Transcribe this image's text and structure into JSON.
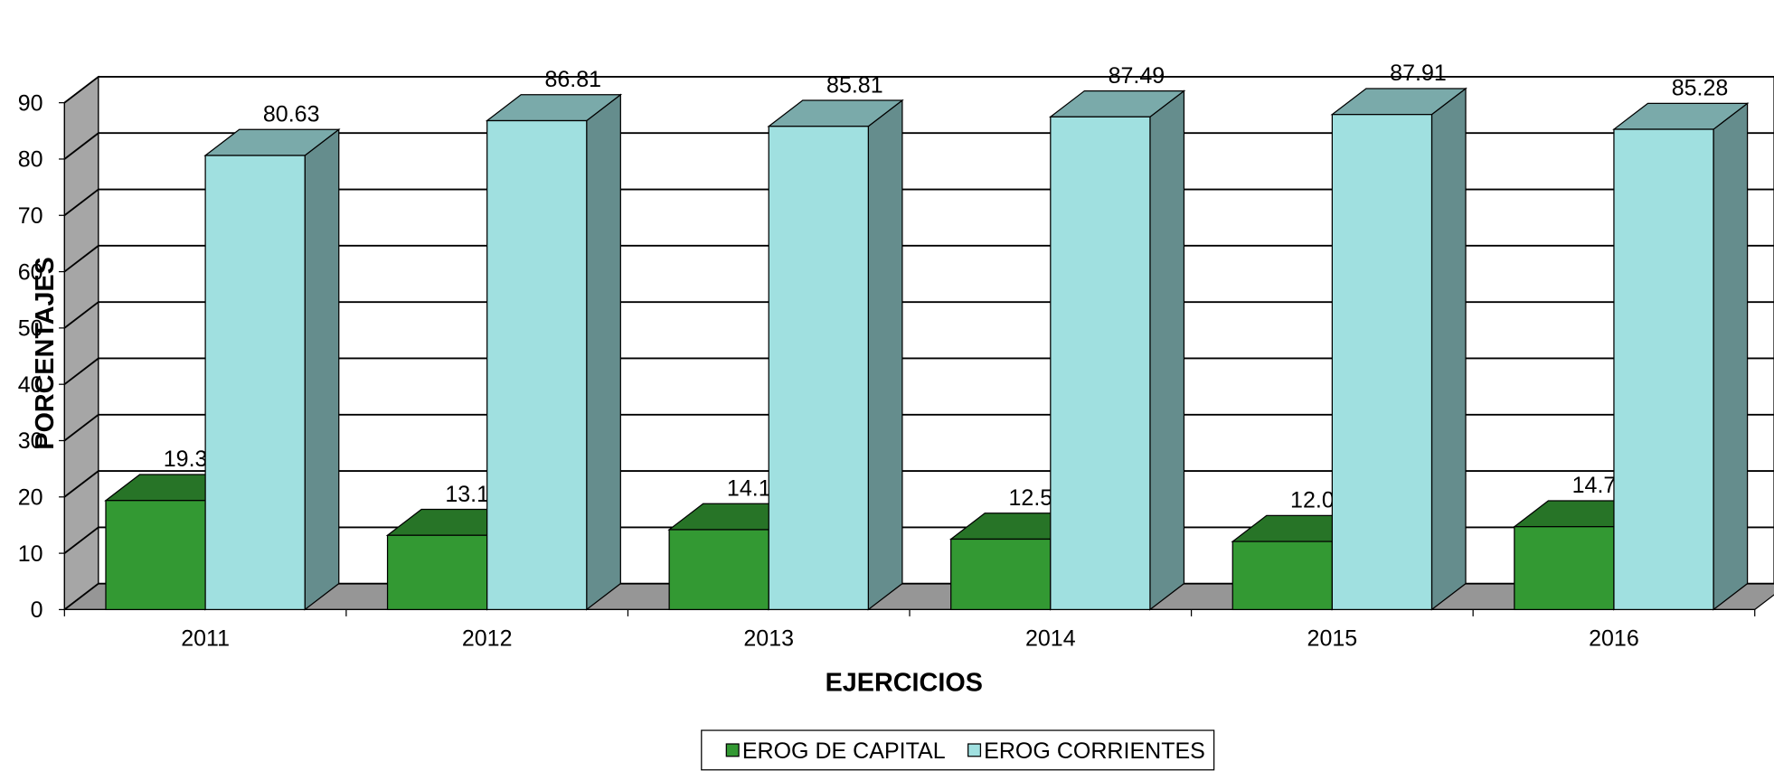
{
  "chart_data": {
    "type": "bar3d",
    "x_label": "EJERCICIOS",
    "y_label": "PORCENTAJES",
    "categories": [
      "2011",
      "2012",
      "2013",
      "2014",
      "2015",
      "2016"
    ],
    "series": [
      {
        "name": "EROG DE CAPITAL",
        "color": "#339933",
        "values": [
          19.37,
          13.19,
          14.19,
          12.51,
          12.09,
          14.72
        ]
      },
      {
        "name": "EROG CORRIENTES",
        "color": "#a0e0e0",
        "values": [
          80.63,
          86.81,
          85.81,
          87.49,
          87.91,
          85.28
        ]
      }
    ],
    "ylim": [
      0,
      90
    ],
    "yticks": [
      0,
      10,
      20,
      30,
      40,
      50,
      60,
      70,
      80,
      90
    ],
    "grid": true,
    "legend": "bottom"
  }
}
